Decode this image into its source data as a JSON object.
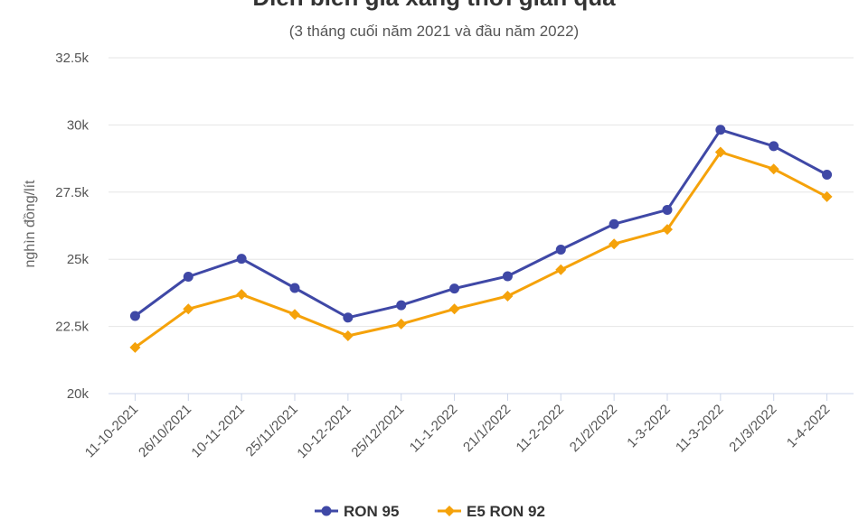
{
  "chart_data": {
    "type": "line",
    "title": "Diễn biến giá xăng thời gian qua",
    "subtitle": "(3 tháng cuối năm 2021 và đầu năm 2022)",
    "xlabel": "",
    "ylabel": "nghìn đồng/lít",
    "categories": [
      "11-10-2021",
      "26/10/2021",
      "10-11-2021",
      "25/11/2021",
      "10-12-2021",
      "25/12/2021",
      "11-1-2022",
      "21/1/2022",
      "11-2-2022",
      "21/2/2022",
      "1-3-2022",
      "11-3-2022",
      "21/3/2022",
      "1-4-2022"
    ],
    "ylim": [
      20000,
      32500
    ],
    "yticks": [
      {
        "value": 20000,
        "label": "20k"
      },
      {
        "value": 22500,
        "label": "22.5k"
      },
      {
        "value": 25000,
        "label": "25k"
      },
      {
        "value": 27500,
        "label": "27.5k"
      },
      {
        "value": 30000,
        "label": "30k"
      },
      {
        "value": 32500,
        "label": "32.5k"
      }
    ],
    "grid": true,
    "legend_position": "bottom-center",
    "series": [
      {
        "name": "RON 95",
        "color": "#3f48a6",
        "marker": "circle",
        "values": [
          22890,
          24350,
          25020,
          23930,
          22830,
          23290,
          23910,
          24370,
          25360,
          26310,
          26840,
          29820,
          29210,
          28150
        ]
      },
      {
        "name": "E5 RON 92",
        "color": "#f5a20a",
        "marker": "diamond",
        "values": [
          21720,
          23150,
          23690,
          22950,
          22150,
          22590,
          23150,
          23630,
          24610,
          25570,
          26110,
          28990,
          28360,
          27330
        ]
      }
    ]
  }
}
